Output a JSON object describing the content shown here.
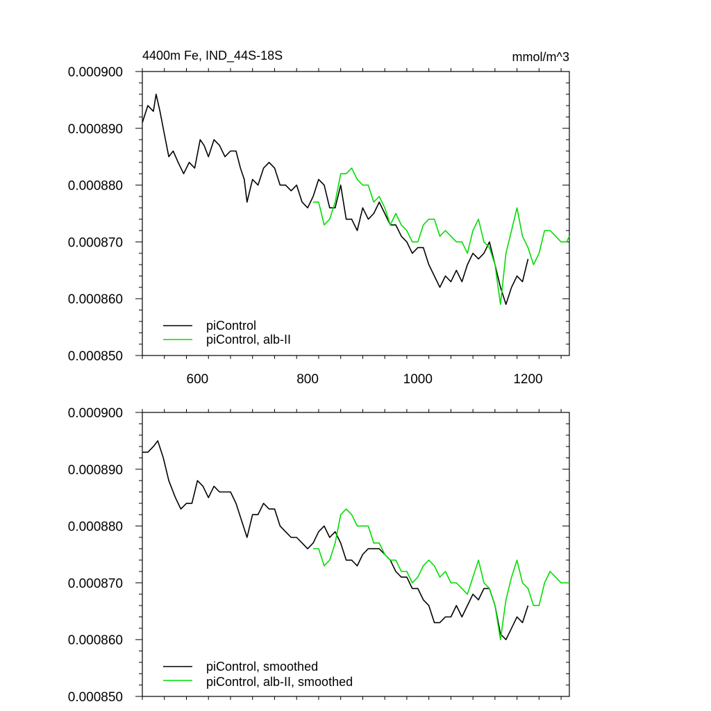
{
  "colors": {
    "piControl": "#000000",
    "albII": "#00dd00"
  },
  "chart_data": [
    {
      "type": "line",
      "title": "4400m Fe, IND_44S-18S",
      "units": "mmol/m^3",
      "xlim": [
        500,
        1275
      ],
      "ylim": [
        0.00085,
        0.0009
      ],
      "x_tick_values": [
        600,
        800,
        1000,
        1200
      ],
      "x_tick_labels": [
        "600",
        "800",
        "1000",
        "1200"
      ],
      "y_tick_values": [
        0.0009,
        0.00089,
        0.00088,
        0.00087,
        0.00086,
        0.00085
      ],
      "y_tick_labels": [
        "0.000900",
        "0.000890",
        "0.000880",
        "0.000870",
        "0.000860",
        "0.000850"
      ],
      "legend": [
        "piControl",
        "piControl, alb-II"
      ],
      "legend_position": "bottom-left",
      "series": [
        {
          "name": "piControl",
          "x": [
            500,
            510,
            520,
            525,
            532,
            540,
            548,
            556,
            565,
            575,
            585,
            595,
            605,
            612,
            620,
            630,
            640,
            650,
            660,
            670,
            678,
            685,
            690,
            695,
            700,
            710,
            720,
            730,
            740,
            750,
            760,
            770,
            780,
            790,
            800,
            810,
            820,
            830,
            840,
            850,
            860,
            870,
            880,
            890,
            900,
            910,
            920,
            930,
            940,
            950,
            960,
            970,
            980,
            990,
            1000,
            1010,
            1020,
            1030,
            1040,
            1050,
            1060,
            1070,
            1080,
            1090,
            1100,
            1110,
            1120,
            1130,
            1140,
            1150,
            1160,
            1170,
            1180,
            1190,
            1200
          ],
          "y": [
            0.000891,
            0.000894,
            0.000893,
            0.000896,
            0.000893,
            0.000889,
            0.000885,
            0.000886,
            0.000884,
            0.000882,
            0.000884,
            0.000883,
            0.000888,
            0.000887,
            0.000885,
            0.000888,
            0.000887,
            0.000885,
            0.000886,
            0.000886,
            0.000883,
            0.000881,
            0.000877,
            0.000879,
            0.000881,
            0.00088,
            0.000883,
            0.000884,
            0.000883,
            0.00088,
            0.00088,
            0.000879,
            0.00088,
            0.000877,
            0.000876,
            0.000878,
            0.000881,
            0.00088,
            0.000876,
            0.000876,
            0.00088,
            0.000874,
            0.000874,
            0.000872,
            0.000876,
            0.000874,
            0.000875,
            0.000877,
            0.000875,
            0.000873,
            0.000873,
            0.000871,
            0.00087,
            0.000868,
            0.000869,
            0.000869,
            0.000866,
            0.000864,
            0.000862,
            0.000864,
            0.000863,
            0.000865,
            0.000863,
            0.000866,
            0.000868,
            0.000867,
            0.000868,
            0.00087,
            0.000866,
            0.000862,
            0.000859,
            0.000862,
            0.000864,
            0.000863,
            0.000867
          ]
        },
        {
          "name": "piControl, alb-II",
          "x": [
            810,
            820,
            830,
            840,
            850,
            860,
            870,
            880,
            890,
            900,
            910,
            920,
            930,
            940,
            950,
            960,
            970,
            980,
            990,
            1000,
            1010,
            1020,
            1030,
            1040,
            1050,
            1060,
            1070,
            1080,
            1090,
            1100,
            1110,
            1120,
            1130,
            1140,
            1150,
            1160,
            1170,
            1180,
            1190,
            1200,
            1210,
            1220,
            1230,
            1240,
            1250,
            1260,
            1270,
            1275
          ],
          "y": [
            0.000877,
            0.000877,
            0.000873,
            0.000874,
            0.000877,
            0.000882,
            0.000882,
            0.000883,
            0.000881,
            0.00088,
            0.00088,
            0.000877,
            0.000878,
            0.000876,
            0.000873,
            0.000875,
            0.000873,
            0.000872,
            0.00087,
            0.00087,
            0.000873,
            0.000874,
            0.000874,
            0.000871,
            0.000872,
            0.000871,
            0.00087,
            0.00087,
            0.000868,
            0.000872,
            0.000874,
            0.00087,
            0.000869,
            0.000866,
            0.000859,
            0.000868,
            0.000872,
            0.000876,
            0.000871,
            0.000869,
            0.000866,
            0.000868,
            0.000872,
            0.000872,
            0.000871,
            0.00087,
            0.00087,
            0.000871
          ]
        }
      ]
    },
    {
      "type": "line",
      "title": "",
      "xlim": [
        500,
        1275
      ],
      "ylim": [
        0.00085,
        0.0009
      ],
      "x_tick_values": [
        600,
        800,
        1000,
        1200
      ],
      "y_tick_values": [
        0.0009,
        0.00089,
        0.00088,
        0.00087,
        0.00086,
        0.00085
      ],
      "y_tick_labels": [
        "0.000900",
        "0.000890",
        "0.000880",
        "0.000870",
        "0.000860",
        "0.000850"
      ],
      "legend": [
        "piControl, smoothed",
        "piControl, alb-II, smoothed"
      ],
      "legend_position": "bottom-left",
      "series": [
        {
          "name": "piControl, smoothed",
          "x": [
            500,
            510,
            520,
            528,
            538,
            548,
            560,
            570,
            580,
            590,
            600,
            610,
            620,
            630,
            640,
            650,
            660,
            670,
            680,
            690,
            700,
            710,
            720,
            730,
            740,
            750,
            760,
            770,
            780,
            790,
            800,
            810,
            820,
            830,
            840,
            850,
            860,
            870,
            880,
            890,
            900,
            910,
            920,
            930,
            940,
            950,
            960,
            970,
            980,
            990,
            1000,
            1010,
            1020,
            1030,
            1040,
            1050,
            1060,
            1070,
            1080,
            1090,
            1100,
            1110,
            1120,
            1130,
            1140,
            1150,
            1160,
            1170,
            1180,
            1190,
            1200
          ],
          "y": [
            0.000893,
            0.000893,
            0.000894,
            0.000895,
            0.000892,
            0.000888,
            0.000885,
            0.000883,
            0.000884,
            0.000884,
            0.000888,
            0.000887,
            0.000885,
            0.000887,
            0.000886,
            0.000886,
            0.000886,
            0.000884,
            0.000881,
            0.000878,
            0.000882,
            0.000882,
            0.000884,
            0.000883,
            0.000883,
            0.00088,
            0.000879,
            0.000878,
            0.000878,
            0.000877,
            0.000876,
            0.000877,
            0.000879,
            0.00088,
            0.000878,
            0.000879,
            0.000877,
            0.000874,
            0.000874,
            0.000873,
            0.000875,
            0.000876,
            0.000876,
            0.000876,
            0.000875,
            0.000874,
            0.000872,
            0.000871,
            0.000871,
            0.000869,
            0.000869,
            0.000867,
            0.000866,
            0.000863,
            0.000863,
            0.000864,
            0.000864,
            0.000866,
            0.000864,
            0.000866,
            0.000868,
            0.000867,
            0.000869,
            0.000869,
            0.000866,
            0.000861,
            0.00086,
            0.000862,
            0.000864,
            0.000863,
            0.000866
          ]
        },
        {
          "name": "piControl, alb-II, smoothed",
          "x": [
            810,
            820,
            830,
            840,
            850,
            860,
            870,
            880,
            890,
            900,
            910,
            920,
            930,
            940,
            950,
            960,
            970,
            980,
            990,
            1000,
            1010,
            1020,
            1030,
            1040,
            1050,
            1060,
            1070,
            1080,
            1090,
            1100,
            1110,
            1120,
            1130,
            1140,
            1150,
            1160,
            1170,
            1180,
            1190,
            1200,
            1210,
            1220,
            1230,
            1240,
            1250,
            1260,
            1270,
            1275
          ],
          "y": [
            0.000876,
            0.000876,
            0.000873,
            0.000874,
            0.000877,
            0.000882,
            0.000883,
            0.000882,
            0.00088,
            0.00088,
            0.00088,
            0.000877,
            0.000877,
            0.000875,
            0.000874,
            0.000874,
            0.000872,
            0.000872,
            0.00087,
            0.000871,
            0.000873,
            0.000874,
            0.000873,
            0.000871,
            0.000872,
            0.00087,
            0.00087,
            0.000869,
            0.000868,
            0.000871,
            0.000874,
            0.00087,
            0.000869,
            0.000866,
            0.00086,
            0.000867,
            0.000871,
            0.000874,
            0.00087,
            0.000869,
            0.000866,
            0.000866,
            0.00087,
            0.000872,
            0.000871,
            0.00087,
            0.00087,
            0.00087
          ]
        }
      ]
    }
  ]
}
